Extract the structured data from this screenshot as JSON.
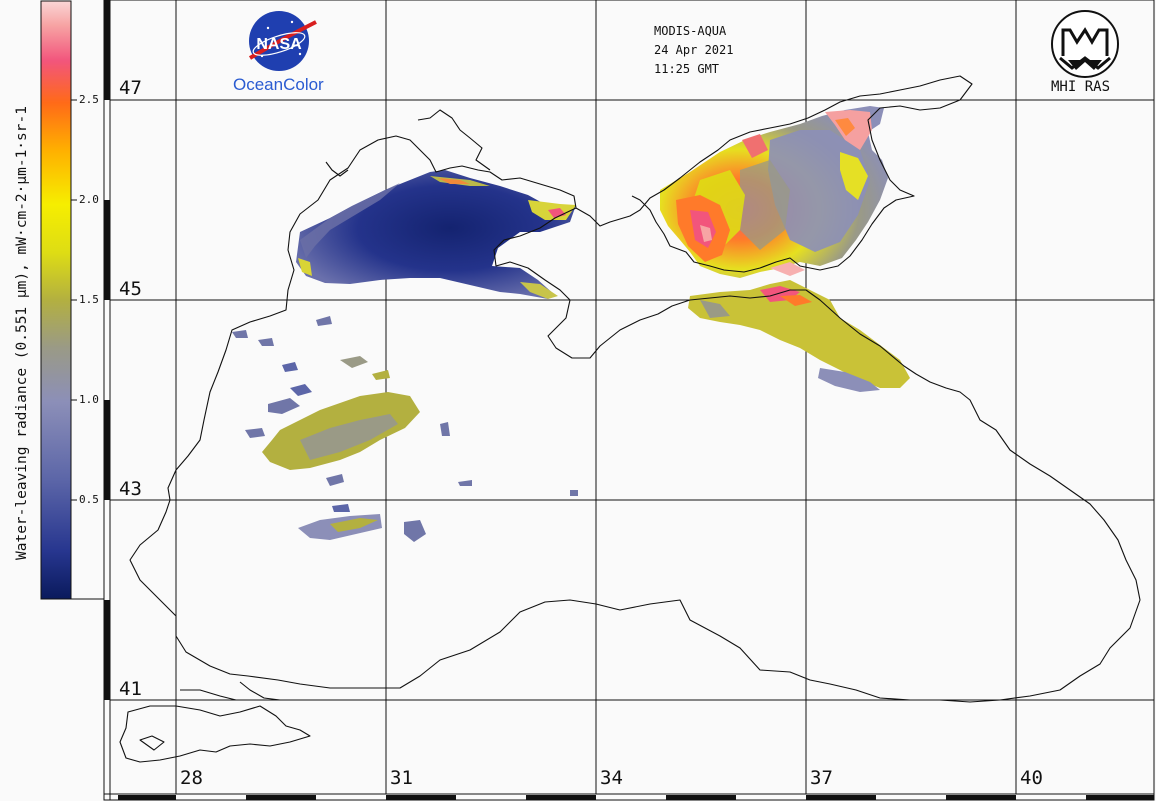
{
  "sensor": "MODIS-AQUA",
  "date": "24 Apr 2021",
  "time": "11:25 GMT",
  "logos": {
    "nasa_word": "NASA",
    "oceancolor": "OceanColor",
    "mhi": "MHI RAS"
  },
  "colorbar": {
    "title": "Water-leaving radiance (0.551 µm), mW·cm-2·µm-1·sr-1",
    "ticks": [
      "2.5",
      "2.0",
      "1.5",
      "1.0",
      "0.5"
    ],
    "colors": [
      "#0a1a5c",
      "#27368f",
      "#5c66a8",
      "#8c8fb8",
      "#9a9a86",
      "#b3b040",
      "#dedd14",
      "#f6ee00",
      "#ffb000",
      "#ff6a18",
      "#f2557c",
      "#f7a4a4",
      "#fad6d6"
    ]
  },
  "latitude_labels": [
    "47",
    "45",
    "43",
    "41"
  ],
  "longitude_labels": [
    "28",
    "31",
    "34",
    "37",
    "40"
  ],
  "background_color": "#fafafa"
}
